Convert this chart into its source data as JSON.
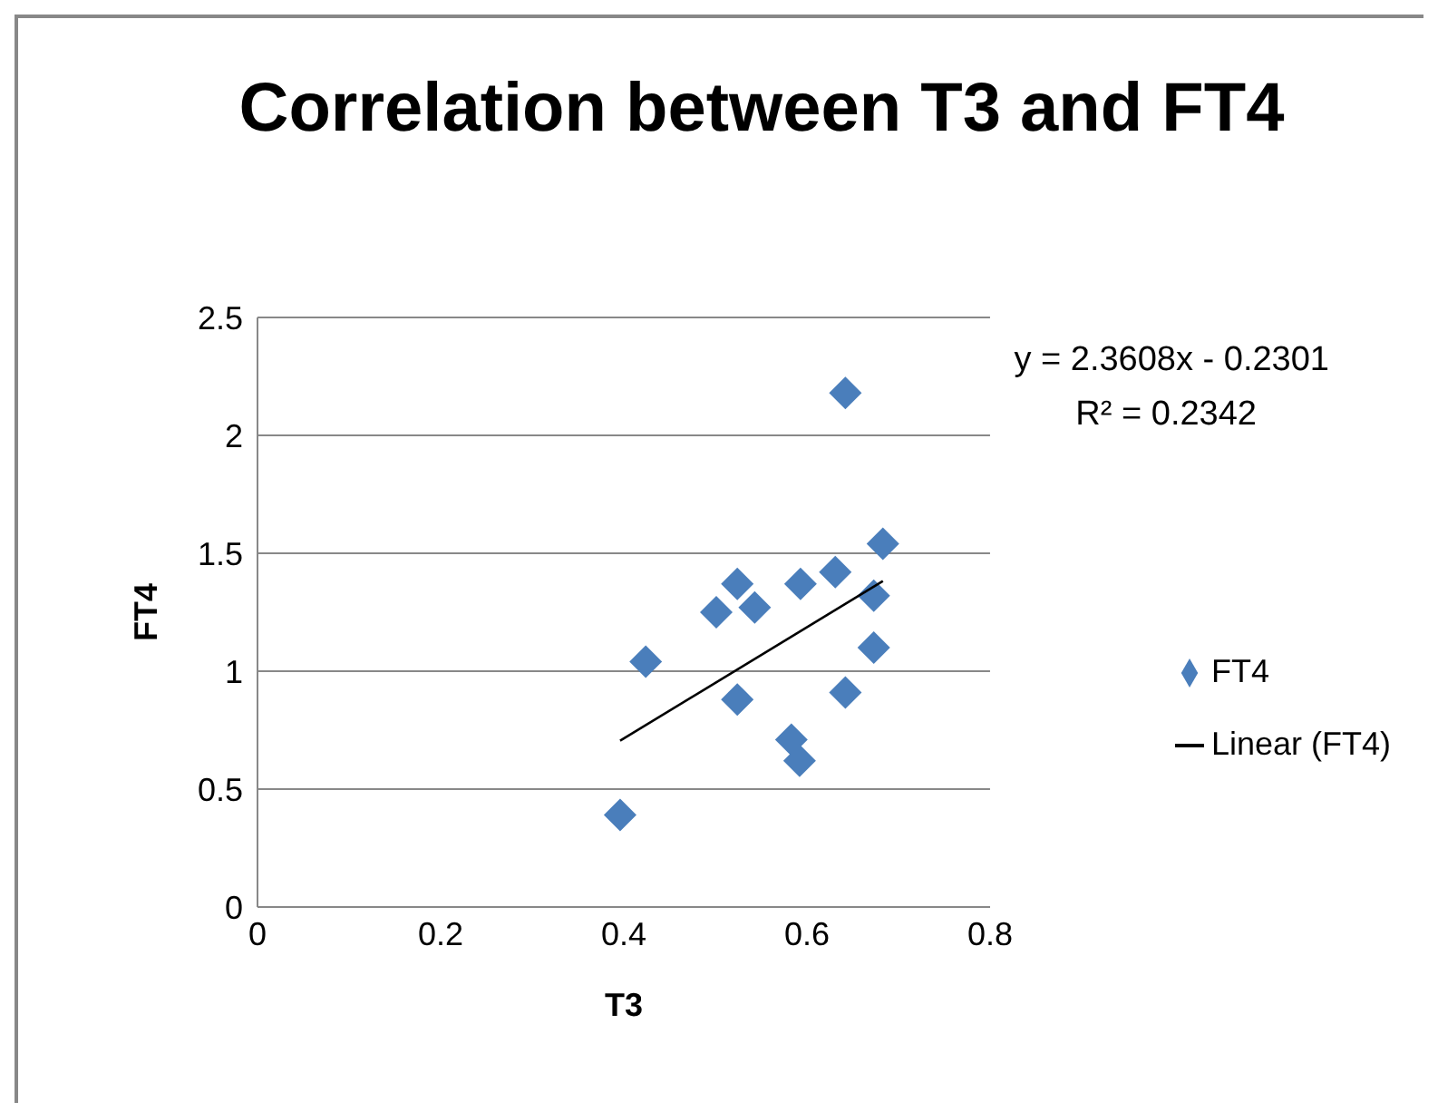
{
  "chart_data": {
    "type": "scatter",
    "title": "Correlation between T3 and FT4",
    "xlabel": "T3",
    "ylabel": "FT4",
    "xlim": [
      0,
      0.8
    ],
    "xticks": [
      0,
      0.2,
      0.4,
      0.6,
      0.8
    ],
    "ylim": [
      0,
      2.5
    ],
    "yticks": [
      0,
      0.5,
      1,
      1.5,
      2,
      2.5
    ],
    "grid": "y",
    "legend": "right",
    "annotations": [
      "y = 2.3608x - 0.2301",
      "R² = 0.2342"
    ],
    "series": [
      {
        "name": "FT4",
        "marker": "diamond",
        "color": "#4a7ebb",
        "x": [
          0.642,
          0.683,
          0.631,
          0.593,
          0.524,
          0.543,
          0.501,
          0.673,
          0.673,
          0.424,
          0.524,
          0.642,
          0.583,
          0.592,
          0.396
        ],
        "values": [
          2.18,
          1.54,
          1.42,
          1.37,
          1.37,
          1.27,
          1.25,
          1.32,
          1.1,
          1.04,
          0.88,
          0.91,
          0.71,
          0.62,
          0.39
        ]
      },
      {
        "name": "Linear (FT4)",
        "type": "line",
        "marker": "none",
        "color": "#000000",
        "x": [
          0.396,
          0.683
        ],
        "values": [
          0.705,
          1.382
        ]
      }
    ]
  }
}
